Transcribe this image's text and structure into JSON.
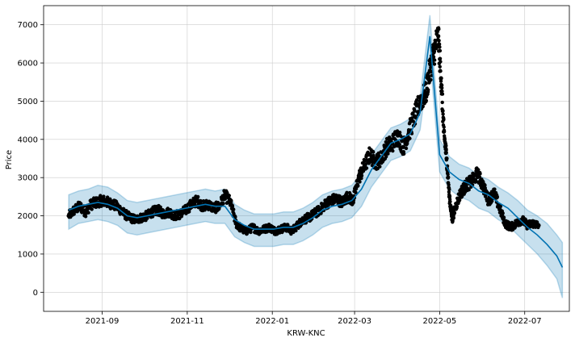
{
  "chart_data": {
    "type": "line",
    "title": "",
    "xlabel": "KRW-KNC",
    "ylabel": "Price",
    "xlim": [
      "2021-07-21",
      "2022-08-02"
    ],
    "ylim": [
      -500,
      7500
    ],
    "x_ticks": [
      "2021-09",
      "2021-11",
      "2022-01",
      "2022-03",
      "2022-05",
      "2022-07"
    ],
    "x_tick_dates": [
      "2021-09-01",
      "2021-11-01",
      "2022-01-01",
      "2022-03-01",
      "2022-05-01",
      "2022-07-01"
    ],
    "y_ticks": [
      0,
      1000,
      2000,
      3000,
      4000,
      5000,
      6000,
      7000
    ],
    "grid": true,
    "legend": "none",
    "colors": {
      "forecast": "#0072B2",
      "interval": "#0072B2",
      "observed": "#000000",
      "grid": "#cccccc",
      "axis": "#000000"
    },
    "series": [
      {
        "kind": "observed",
        "x": [
          "2021-08-08",
          "2021-08-12",
          "2021-08-16",
          "2021-08-20",
          "2021-08-24",
          "2021-08-28",
          "2021-09-01",
          "2021-09-05",
          "2021-09-09",
          "2021-09-13",
          "2021-09-17",
          "2021-09-21",
          "2021-09-25",
          "2021-09-29",
          "2021-10-03",
          "2021-10-07",
          "2021-10-11",
          "2021-10-15",
          "2021-10-19",
          "2021-10-23",
          "2021-10-27",
          "2021-10-31",
          "2021-11-04",
          "2021-11-08",
          "2021-11-12",
          "2021-11-16",
          "2021-11-20",
          "2021-11-24",
          "2021-11-28",
          "2021-12-02",
          "2021-12-06",
          "2021-12-10",
          "2021-12-14",
          "2021-12-18",
          "2021-12-22",
          "2021-12-26",
          "2021-12-30",
          "2022-01-03",
          "2022-01-07",
          "2022-01-11",
          "2022-01-15",
          "2022-01-19",
          "2022-01-23",
          "2022-01-27",
          "2022-01-31",
          "2022-02-04",
          "2022-02-08",
          "2022-02-12",
          "2022-02-16",
          "2022-02-20",
          "2022-02-24",
          "2022-02-28",
          "2022-03-04",
          "2022-03-08",
          "2022-03-12",
          "2022-03-16",
          "2022-03-20",
          "2022-03-24",
          "2022-03-28",
          "2022-04-01",
          "2022-04-05",
          "2022-04-09",
          "2022-04-13",
          "2022-04-17",
          "2022-04-21",
          "2022-04-24",
          "2022-04-27",
          "2022-04-30",
          "2022-05-02",
          "2022-05-04",
          "2022-05-06",
          "2022-05-08",
          "2022-05-10",
          "2022-05-12",
          "2022-05-16",
          "2022-05-20",
          "2022-05-24",
          "2022-05-28",
          "2022-06-01",
          "2022-06-05",
          "2022-06-09",
          "2022-06-13",
          "2022-06-17",
          "2022-06-21",
          "2022-06-25",
          "2022-06-29",
          "2022-07-03",
          "2022-07-07",
          "2022-07-11"
        ],
        "y": [
          2000,
          2150,
          2250,
          2100,
          2300,
          2350,
          2400,
          2350,
          2300,
          2200,
          2050,
          1950,
          1900,
          1950,
          2000,
          2100,
          2150,
          2050,
          2100,
          2000,
          2050,
          2150,
          2300,
          2400,
          2250,
          2300,
          2200,
          2250,
          2550,
          2350,
          1800,
          1650,
          1600,
          1700,
          1600,
          1650,
          1700,
          1600,
          1650,
          1700,
          1600,
          1750,
          1900,
          1950,
          2050,
          2150,
          2300,
          2400,
          2450,
          2350,
          2500,
          2400,
          3000,
          3300,
          3600,
          3400,
          3500,
          3800,
          3900,
          4100,
          3800,
          4200,
          4600,
          5000,
          5200,
          5800,
          6300,
          6700,
          5600,
          4200,
          3500,
          2500,
          1900,
          2200,
          2600,
          2800,
          2900,
          3100,
          2800,
          2400,
          2600,
          2200,
          1800,
          1700,
          1800,
          1900,
          1750,
          1800,
          1750
        ]
      },
      {
        "kind": "forecast",
        "x": [
          "2021-08-08",
          "2021-08-15",
          "2021-08-22",
          "2021-08-29",
          "2021-09-05",
          "2021-09-12",
          "2021-09-19",
          "2021-09-26",
          "2021-10-03",
          "2021-10-10",
          "2021-10-17",
          "2021-10-24",
          "2021-10-31",
          "2021-11-07",
          "2021-11-14",
          "2021-11-21",
          "2021-11-28",
          "2021-12-05",
          "2021-12-12",
          "2021-12-19",
          "2021-12-26",
          "2022-01-02",
          "2022-01-09",
          "2022-01-16",
          "2022-01-23",
          "2022-01-30",
          "2022-02-06",
          "2022-02-13",
          "2022-02-20",
          "2022-02-27",
          "2022-03-06",
          "2022-03-13",
          "2022-03-20",
          "2022-03-27",
          "2022-04-03",
          "2022-04-10",
          "2022-04-17",
          "2022-04-24",
          "2022-05-01",
          "2022-05-08",
          "2022-05-15",
          "2022-05-22",
          "2022-05-29",
          "2022-06-05",
          "2022-06-12",
          "2022-06-19",
          "2022-06-26",
          "2022-07-03",
          "2022-07-10",
          "2022-07-17",
          "2022-07-24",
          "2022-07-28"
        ],
        "y": [
          2150,
          2250,
          2300,
          2350,
          2300,
          2200,
          2000,
          1950,
          2000,
          2050,
          2100,
          2150,
          2200,
          2250,
          2300,
          2250,
          2250,
          1900,
          1750,
          1650,
          1650,
          1650,
          1700,
          1700,
          1800,
          1950,
          2150,
          2250,
          2300,
          2400,
          2700,
          3200,
          3550,
          3900,
          4000,
          4150,
          4700,
          6700,
          3600,
          3150,
          2950,
          2850,
          2650,
          2550,
          2350,
          2200,
          1950,
          1700,
          1500,
          1250,
          950,
          650
        ],
        "upper": [
          2550,
          2650,
          2700,
          2800,
          2750,
          2600,
          2400,
          2350,
          2400,
          2450,
          2500,
          2550,
          2600,
          2650,
          2700,
          2650,
          2700,
          2300,
          2150,
          2050,
          2050,
          2050,
          2100,
          2100,
          2200,
          2350,
          2550,
          2650,
          2700,
          2800,
          3100,
          3600,
          3950,
          4300,
          4400,
          4550,
          5100,
          7250,
          4000,
          3550,
          3350,
          3250,
          3050,
          2950,
          2750,
          2600,
          2400,
          2150,
          2000,
          1800,
          1500,
          1300
        ],
        "lower": [
          1650,
          1800,
          1850,
          1900,
          1850,
          1750,
          1550,
          1500,
          1550,
          1600,
          1650,
          1700,
          1750,
          1800,
          1850,
          1800,
          1800,
          1450,
          1300,
          1200,
          1200,
          1200,
          1250,
          1250,
          1350,
          1500,
          1700,
          1800,
          1850,
          1950,
          2250,
          2750,
          3100,
          3450,
          3550,
          3700,
          4250,
          6200,
          3150,
          2700,
          2500,
          2400,
          2200,
          2100,
          1900,
          1750,
          1500,
          1250,
          1000,
          700,
          350,
          -150
        ]
      }
    ]
  }
}
